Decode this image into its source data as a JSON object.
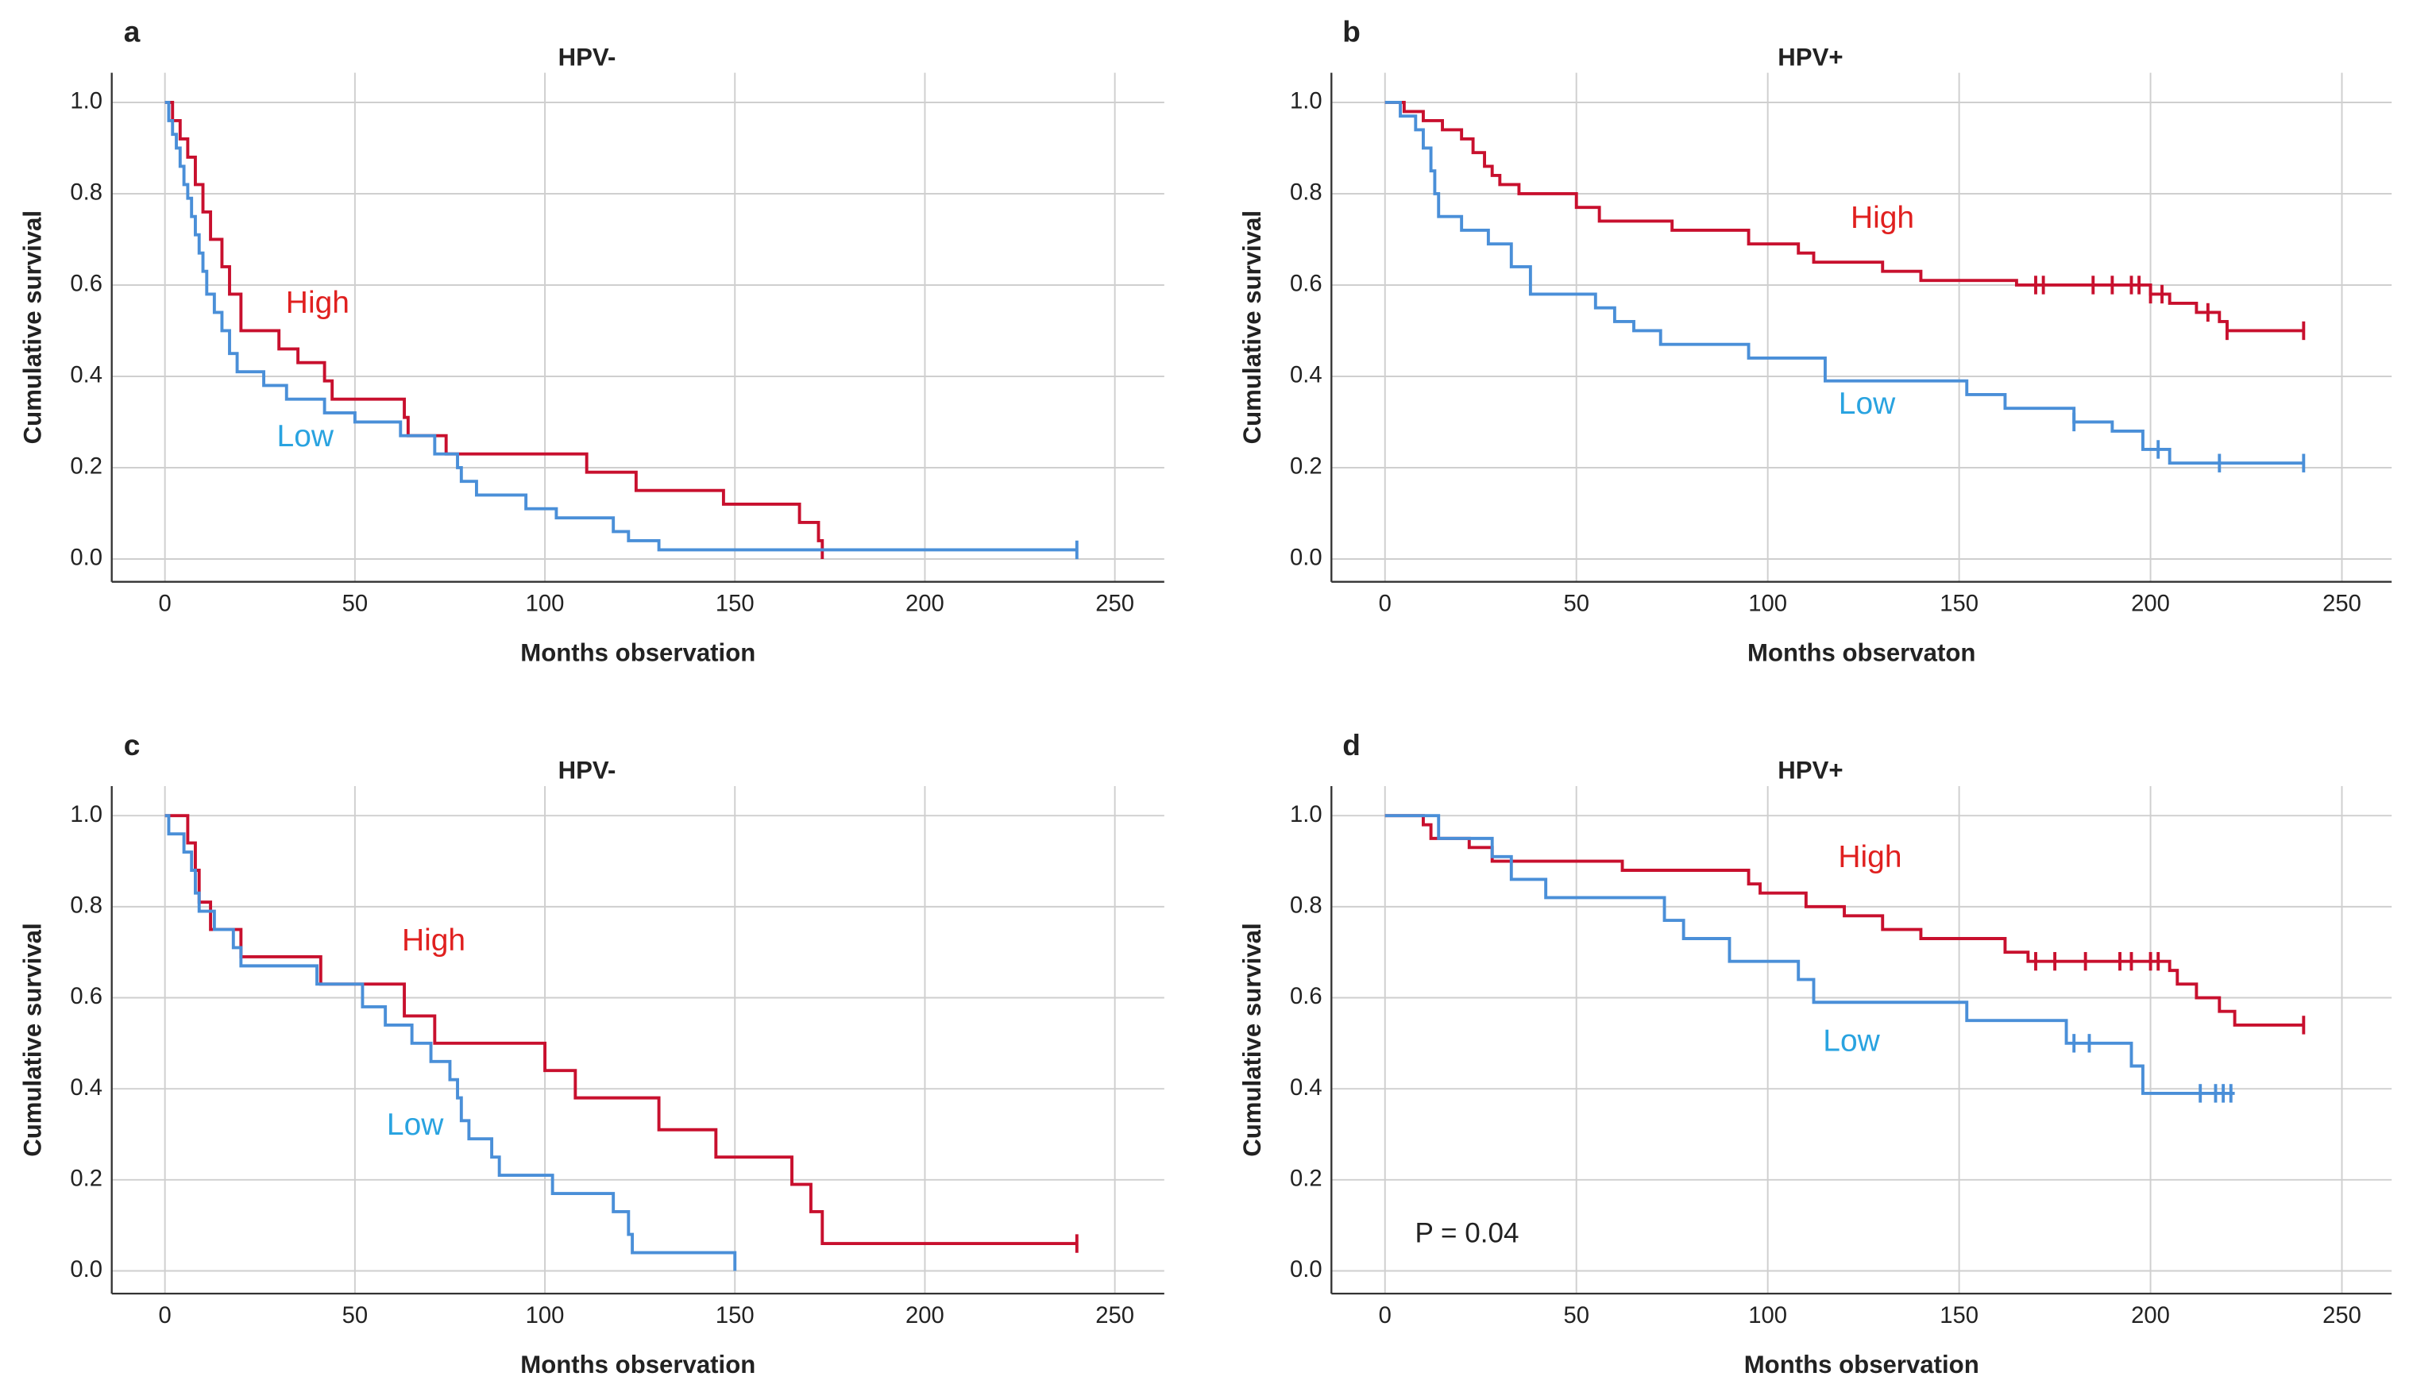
{
  "chart_data": [
    {
      "type": "step",
      "panel": "a",
      "title": "HPV-",
      "x_label": "Months observation",
      "y_label": "Cumulative survival",
      "xlim": [
        -14,
        263
      ],
      "ylim": [
        -0.05,
        1.065
      ],
      "xticks": [
        0,
        50,
        100,
        150,
        200,
        250
      ],
      "yticks": [
        {
          "value": 0,
          "label": "0.0"
        },
        0.2,
        0.4,
        0.6,
        0.8,
        {
          "value": 1,
          "label": "1.0"
        }
      ],
      "grid": true,
      "series": [
        {
          "name": "High",
          "color": "#c8102e",
          "label_color": "#e0201f",
          "x": [
            0,
            2,
            4,
            6,
            8,
            10,
            12,
            15,
            17,
            20,
            30,
            35,
            42,
            44,
            63,
            64,
            74,
            111,
            124,
            147,
            167,
            172,
            173
          ],
          "values": [
            1,
            0.96,
            0.92,
            0.88,
            0.82,
            0.76,
            0.7,
            0.64,
            0.58,
            0.5,
            0.46,
            0.43,
            0.39,
            0.35,
            0.31,
            0.27,
            0.23,
            0.19,
            0.15,
            0.12,
            0.08,
            0.04,
            0.0
          ],
          "censored": []
        },
        {
          "name": "Low",
          "color": "#4a8fd8",
          "label_color": "#29a3e0",
          "x": [
            0,
            1,
            2,
            3,
            4,
            5,
            6,
            7,
            8,
            9,
            10,
            11,
            13,
            15,
            17,
            19,
            26,
            32,
            42,
            50,
            62,
            71,
            77,
            78,
            82,
            95,
            103,
            118,
            122,
            130,
            240
          ],
          "values": [
            1,
            0.96,
            0.93,
            0.9,
            0.86,
            0.82,
            0.79,
            0.75,
            0.71,
            0.67,
            0.63,
            0.58,
            0.54,
            0.5,
            0.45,
            0.41,
            0.38,
            0.35,
            0.32,
            0.3,
            0.27,
            0.23,
            0.2,
            0.17,
            0.14,
            0.11,
            0.09,
            0.06,
            0.04,
            0.02,
            0.02
          ],
          "censored": [
            240
          ]
        }
      ]
    },
    {
      "type": "step",
      "panel": "b",
      "title": "HPV+",
      "x_label": "Months observaton",
      "y_label": "Cumulative survival",
      "xlim": [
        -14,
        263
      ],
      "ylim": [
        -0.05,
        1.065
      ],
      "xticks": [
        0,
        50,
        100,
        150,
        200,
        250
      ],
      "yticks": [
        {
          "value": 0,
          "label": "0.0"
        },
        0.2,
        0.4,
        0.6,
        0.8,
        {
          "value": 1,
          "label": "1.0"
        }
      ],
      "grid": true,
      "series": [
        {
          "name": "High",
          "color": "#c8102e",
          "label_color": "#e0201f",
          "x": [
            0,
            5,
            10,
            15,
            20,
            23,
            26,
            28,
            30,
            35,
            50,
            56,
            75,
            95,
            108,
            112,
            130,
            140,
            165,
            200,
            205,
            212,
            218,
            220,
            240
          ],
          "values": [
            1,
            0.98,
            0.96,
            0.94,
            0.92,
            0.89,
            0.86,
            0.84,
            0.82,
            0.8,
            0.77,
            0.74,
            0.72,
            0.69,
            0.67,
            0.65,
            0.63,
            0.61,
            0.6,
            0.58,
            0.56,
            0.54,
            0.52,
            0.5,
            0.5
          ],
          "censored": [
            170,
            172,
            185,
            190,
            195,
            197,
            200,
            203,
            215,
            220,
            240
          ]
        },
        {
          "name": "Low",
          "color": "#4a8fd8",
          "label_color": "#29a3e0",
          "x": [
            0,
            4,
            8,
            10,
            12,
            13,
            14,
            20,
            27,
            33,
            38,
            55,
            60,
            65,
            72,
            95,
            115,
            152,
            162,
            180,
            190,
            198,
            205,
            240
          ],
          "values": [
            1,
            0.97,
            0.94,
            0.9,
            0.85,
            0.8,
            0.75,
            0.72,
            0.69,
            0.64,
            0.58,
            0.55,
            0.52,
            0.5,
            0.47,
            0.44,
            0.39,
            0.36,
            0.33,
            0.3,
            0.28,
            0.24,
            0.21,
            0.21
          ],
          "censored": [
            180,
            202,
            218,
            240
          ]
        }
      ]
    },
    {
      "type": "step",
      "panel": "c",
      "title": "HPV-",
      "x_label": "Months observation",
      "y_label": "Cumulative survival",
      "xlim": [
        -14,
        263
      ],
      "ylim": [
        -0.05,
        1.065
      ],
      "xticks": [
        0,
        50,
        100,
        150,
        200,
        250
      ],
      "yticks": [
        {
          "value": 0,
          "label": "0.0"
        },
        0.2,
        0.4,
        0.6,
        0.8,
        {
          "value": 1,
          "label": "1.0"
        }
      ],
      "grid": true,
      "series": [
        {
          "name": "High",
          "color": "#c8102e",
          "label_color": "#e0201f",
          "x": [
            0,
            6,
            8,
            9,
            12,
            20,
            41,
            63,
            71,
            100,
            108,
            130,
            145,
            165,
            170,
            173,
            240
          ],
          "values": [
            1,
            0.94,
            0.88,
            0.81,
            0.75,
            0.69,
            0.63,
            0.56,
            0.5,
            0.44,
            0.38,
            0.31,
            0.25,
            0.19,
            0.13,
            0.06,
            0.06
          ],
          "censored": [
            240
          ]
        },
        {
          "name": "Low",
          "color": "#4a8fd8",
          "label_color": "#29a3e0",
          "x": [
            0,
            1,
            5,
            7,
            8,
            9,
            13,
            18,
            20,
            40,
            52,
            58,
            65,
            70,
            75,
            77,
            78,
            80,
            86,
            88,
            102,
            118,
            122,
            123,
            150
          ],
          "values": [
            1,
            0.96,
            0.92,
            0.88,
            0.83,
            0.79,
            0.75,
            0.71,
            0.67,
            0.63,
            0.58,
            0.54,
            0.5,
            0.46,
            0.42,
            0.38,
            0.33,
            0.29,
            0.25,
            0.21,
            0.17,
            0.13,
            0.08,
            0.04,
            0
          ],
          "censored": []
        }
      ]
    },
    {
      "type": "step",
      "panel": "d",
      "title": "HPV+",
      "x_label": "Months observation",
      "y_label": "Cumulative survival",
      "annotation": "P = 0.04",
      "xlim": [
        -14,
        263
      ],
      "ylim": [
        -0.05,
        1.065
      ],
      "xticks": [
        0,
        50,
        100,
        150,
        200,
        250
      ],
      "yticks": [
        {
          "value": 0,
          "label": "0.0"
        },
        0.2,
        0.4,
        0.6,
        0.8,
        {
          "value": 1,
          "label": "1.0"
        }
      ],
      "grid": true,
      "series": [
        {
          "name": "High",
          "color": "#c8102e",
          "label_color": "#e0201f",
          "x": [
            0,
            10,
            12,
            22,
            28,
            62,
            95,
            98,
            110,
            120,
            130,
            140,
            162,
            168,
            205,
            207,
            212,
            218,
            222,
            240
          ],
          "values": [
            1,
            0.98,
            0.95,
            0.93,
            0.9,
            0.88,
            0.85,
            0.83,
            0.8,
            0.78,
            0.75,
            0.73,
            0.7,
            0.68,
            0.66,
            0.63,
            0.6,
            0.57,
            0.54,
            0.54
          ],
          "censored": [
            170,
            175,
            183,
            192,
            195,
            200,
            202,
            240
          ]
        },
        {
          "name": "Low",
          "color": "#4a8fd8",
          "label_color": "#29a3e0",
          "x": [
            0,
            14,
            28,
            33,
            42,
            73,
            78,
            90,
            108,
            112,
            152,
            178,
            195,
            198,
            222
          ],
          "values": [
            1,
            0.95,
            0.91,
            0.86,
            0.82,
            0.77,
            0.73,
            0.68,
            0.64,
            0.59,
            0.55,
            0.5,
            0.45,
            0.39,
            0.39
          ],
          "censored": [
            180,
            184,
            213,
            217,
            219,
            221
          ]
        }
      ]
    }
  ]
}
